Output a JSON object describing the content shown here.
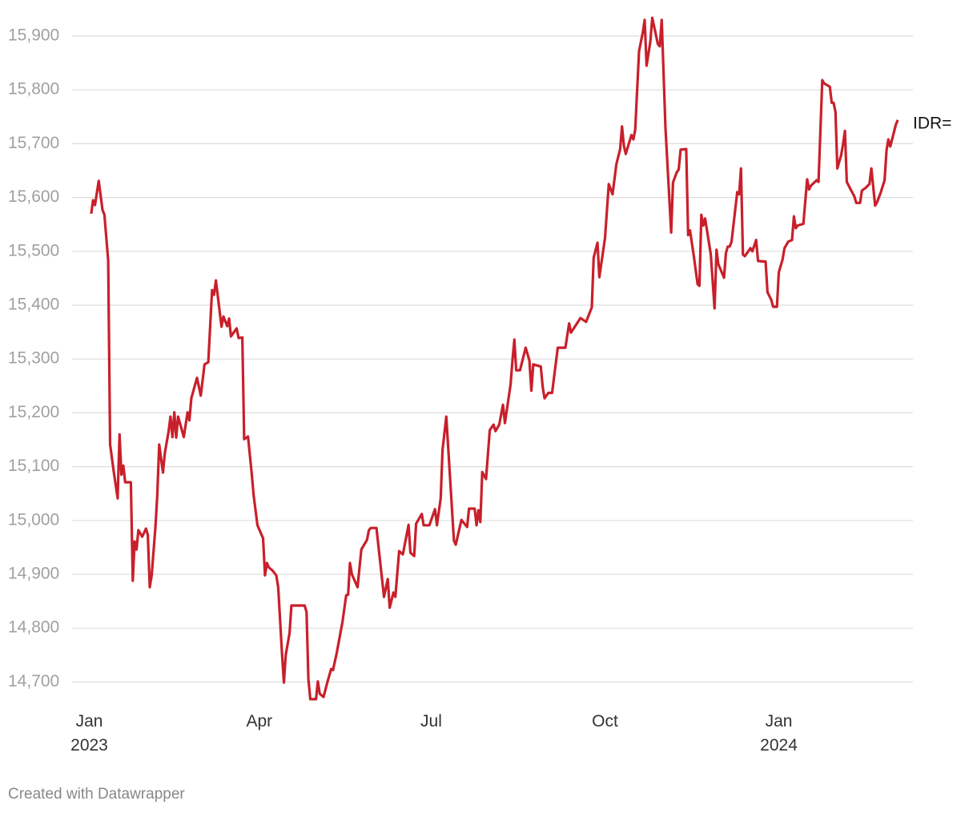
{
  "chart_data": {
    "type": "line",
    "credit": "Created with Datawrapper",
    "grid": true,
    "xlim": [
      "2022-12-25",
      "2024-03-12"
    ],
    "ylim": [
      14650,
      15950
    ],
    "yticks": [
      {
        "value": 14700,
        "label": "14,700"
      },
      {
        "value": 14800,
        "label": "14,800"
      },
      {
        "value": 14900,
        "label": "14,900"
      },
      {
        "value": 15000,
        "label": "15,000"
      },
      {
        "value": 15100,
        "label": "15,100"
      },
      {
        "value": 15200,
        "label": "15,200"
      },
      {
        "value": 15300,
        "label": "15,300"
      },
      {
        "value": 15400,
        "label": "15,400"
      },
      {
        "value": 15500,
        "label": "15,500"
      },
      {
        "value": 15600,
        "label": "15,600"
      },
      {
        "value": 15700,
        "label": "15,700"
      },
      {
        "value": 15800,
        "label": "15,800"
      },
      {
        "value": 15900,
        "label": "15,900"
      }
    ],
    "xticks": [
      {
        "value": "2023-01-01",
        "label": "Jan\n2023"
      },
      {
        "value": "2023-04-01",
        "label": "Apr"
      },
      {
        "value": "2023-07-01",
        "label": "Jul"
      },
      {
        "value": "2023-10-01",
        "label": "Oct"
      },
      {
        "value": "2024-01-01",
        "label": "Jan\n2024"
      }
    ],
    "x": [
      "2023-01-02",
      "2023-01-03",
      "2023-01-04",
      "2023-01-06",
      "2023-01-08",
      "2023-01-09",
      "2023-01-11",
      "2023-01-12",
      "2023-01-14",
      "2023-01-16",
      "2023-01-17",
      "2023-01-18",
      "2023-01-19",
      "2023-01-20",
      "2023-01-23",
      "2023-01-24",
      "2023-01-25",
      "2023-01-26",
      "2023-01-27",
      "2023-01-29",
      "2023-01-31",
      "2023-02-01",
      "2023-02-02",
      "2023-02-03",
      "2023-02-05",
      "2023-02-06",
      "2023-02-07",
      "2023-02-09",
      "2023-02-10",
      "2023-02-12",
      "2023-02-13",
      "2023-02-14",
      "2023-02-15",
      "2023-02-16",
      "2023-02-17",
      "2023-02-20",
      "2023-02-22",
      "2023-02-23",
      "2023-02-24",
      "2023-02-27",
      "2023-03-01",
      "2023-03-03",
      "2023-03-05",
      "2023-03-07",
      "2023-03-08",
      "2023-03-09",
      "2023-03-12",
      "2023-03-13",
      "2023-03-15",
      "2023-03-16",
      "2023-03-17",
      "2023-03-20",
      "2023-03-21",
      "2023-03-23",
      "2023-03-24",
      "2023-03-26",
      "2023-03-28",
      "2023-03-29",
      "2023-03-31",
      "2023-04-03",
      "2023-04-04",
      "2023-04-05",
      "2023-04-06",
      "2023-04-08",
      "2023-04-10",
      "2023-04-11",
      "2023-04-13",
      "2023-04-14",
      "2023-04-15",
      "2023-04-17",
      "2023-04-18",
      "2023-04-21",
      "2023-04-25",
      "2023-04-26",
      "2023-04-27",
      "2023-04-28",
      "2023-05-01",
      "2023-05-02",
      "2023-05-03",
      "2023-05-05",
      "2023-05-07",
      "2023-05-09",
      "2023-05-10",
      "2023-05-12",
      "2023-05-15",
      "2023-05-17",
      "2023-05-18",
      "2023-05-19",
      "2023-05-20",
      "2023-05-23",
      "2023-05-25",
      "2023-05-28",
      "2023-05-29",
      "2023-05-30",
      "2023-06-02",
      "2023-06-06",
      "2023-06-08",
      "2023-06-09",
      "2023-06-11",
      "2023-06-12",
      "2023-06-14",
      "2023-06-16",
      "2023-06-19",
      "2023-06-20",
      "2023-06-22",
      "2023-06-23",
      "2023-06-26",
      "2023-06-27",
      "2023-06-30",
      "2023-07-03",
      "2023-07-04",
      "2023-07-06",
      "2023-07-07",
      "2023-07-09",
      "2023-07-11",
      "2023-07-13",
      "2023-07-14",
      "2023-07-17",
      "2023-07-20",
      "2023-07-21",
      "2023-07-24",
      "2023-07-25",
      "2023-07-26",
      "2023-07-27",
      "2023-07-28",
      "2023-07-30",
      "2023-08-01",
      "2023-08-03",
      "2023-08-04",
      "2023-08-06",
      "2023-08-08",
      "2023-08-09",
      "2023-08-12",
      "2023-08-13",
      "2023-08-14",
      "2023-08-15",
      "2023-08-17",
      "2023-08-20",
      "2023-08-22",
      "2023-08-23",
      "2023-08-24",
      "2023-08-28",
      "2023-08-29",
      "2023-08-30",
      "2023-09-01",
      "2023-09-03",
      "2023-09-06",
      "2023-09-10",
      "2023-09-12",
      "2023-09-13",
      "2023-09-15",
      "2023-09-18",
      "2023-09-21",
      "2023-09-24",
      "2023-09-25",
      "2023-09-27",
      "2023-09-28",
      "2023-10-01",
      "2023-10-03",
      "2023-10-05",
      "2023-10-07",
      "2023-10-09",
      "2023-10-10",
      "2023-10-11",
      "2023-10-12",
      "2023-10-15",
      "2023-10-16",
      "2023-10-17",
      "2023-10-19",
      "2023-10-21",
      "2023-10-22",
      "2023-10-23",
      "2023-10-25",
      "2023-10-26",
      "2023-10-29",
      "2023-10-30",
      "2023-10-31",
      "2023-11-02",
      "2023-11-05",
      "2023-11-06",
      "2023-11-08",
      "2023-11-09",
      "2023-11-10",
      "2023-11-13",
      "2023-11-14",
      "2023-11-15",
      "2023-11-17",
      "2023-11-19",
      "2023-11-20",
      "2023-11-21",
      "2023-11-22",
      "2023-11-23",
      "2023-11-26",
      "2023-11-28",
      "2023-11-29",
      "2023-11-30",
      "2023-12-03",
      "2023-12-04",
      "2023-12-05",
      "2023-12-06",
      "2023-12-07",
      "2023-12-10",
      "2023-12-11",
      "2023-12-12",
      "2023-12-13",
      "2023-12-14",
      "2023-12-17",
      "2023-12-18",
      "2023-12-20",
      "2023-12-21",
      "2023-12-25",
      "2023-12-26",
      "2023-12-28",
      "2023-12-29",
      "2023-12-31",
      "2024-01-01",
      "2024-01-03",
      "2024-01-04",
      "2024-01-06",
      "2024-01-08",
      "2024-01-09",
      "2024-01-10",
      "2024-01-11",
      "2024-01-14",
      "2024-01-16",
      "2024-01-17",
      "2024-01-18",
      "2024-01-21",
      "2024-01-22",
      "2024-01-24",
      "2024-01-25",
      "2024-01-28",
      "2024-01-29",
      "2024-01-30",
      "2024-01-31",
      "2024-02-01",
      "2024-02-03",
      "2024-02-04",
      "2024-02-05",
      "2024-02-06",
      "2024-02-08",
      "2024-02-10",
      "2024-02-11",
      "2024-02-13",
      "2024-02-14",
      "2024-02-16",
      "2024-02-18",
      "2024-02-19",
      "2024-02-21",
      "2024-02-22",
      "2024-02-24",
      "2024-02-26",
      "2024-02-27",
      "2024-02-28",
      "2024-02-29",
      "2024-03-03",
      "2024-03-04"
    ],
    "series": [
      {
        "name": "IDR=",
        "color": "#c8202b",
        "values": [
          15570,
          15595,
          15586,
          15631,
          15577,
          15568,
          15483,
          15141,
          15089,
          15041,
          15160,
          15085,
          15102,
          15071,
          15071,
          14888,
          14961,
          14946,
          14982,
          14970,
          14985,
          14973,
          14876,
          14898,
          14988,
          15047,
          15141,
          15089,
          15126,
          15166,
          15193,
          15155,
          15201,
          15154,
          15193,
          15155,
          15201,
          15186,
          15227,
          15265,
          15232,
          15290,
          15294,
          15428,
          15419,
          15446,
          15360,
          15379,
          15361,
          15375,
          15342,
          15357,
          15339,
          15340,
          15151,
          15156,
          15086,
          15047,
          14991,
          14967,
          14898,
          14921,
          14913,
          14907,
          14898,
          14876,
          14754,
          14699,
          14750,
          14791,
          14842,
          14842,
          14842,
          14830,
          14705,
          14668,
          14668,
          14701,
          14678,
          14672,
          14699,
          14724,
          14722,
          14754,
          14811,
          14861,
          14862,
          14921,
          14900,
          14876,
          14946,
          14964,
          14982,
          14986,
          14986,
          14858,
          14891,
          14838,
          14866,
          14858,
          14943,
          14937,
          14992,
          14940,
          14934,
          14994,
          15012,
          14991,
          14991,
          15021,
          14991,
          15041,
          15131,
          15193,
          15077,
          14963,
          14955,
          15001,
          14988,
          15022,
          15022,
          14991,
          15019,
          14997,
          15090,
          15077,
          15168,
          15178,
          15166,
          15178,
          15215,
          15181,
          15253,
          15297,
          15336,
          15279,
          15279,
          15321,
          15297,
          15241,
          15290,
          15286,
          15248,
          15227,
          15237,
          15237,
          15321,
          15321,
          15366,
          15349,
          15360,
          15376,
          15369,
          15396,
          15488,
          15516,
          15452,
          15525,
          15625,
          15606,
          15662,
          15690,
          15732,
          15696,
          15681,
          15716,
          15708,
          15726,
          15872,
          15907,
          15930,
          15845,
          15890,
          15934,
          15885,
          15881,
          15930,
          15729,
          15535,
          15628,
          15647,
          15652,
          15689,
          15690,
          15530,
          15539,
          15491,
          15439,
          15436,
          15568,
          15548,
          15561,
          15494,
          15394,
          15503,
          15476,
          15451,
          15497,
          15509,
          15509,
          15518,
          15610,
          15606,
          15654,
          15494,
          15491,
          15506,
          15500,
          15521,
          15482,
          15481,
          15424,
          15410,
          15397,
          15397,
          15461,
          15485,
          15506,
          15518,
          15521,
          15565,
          15543,
          15548,
          15551,
          15634,
          15615,
          15622,
          15632,
          15629,
          15818,
          15812,
          15806,
          15776,
          15776,
          15759,
          15654,
          15679,
          15699,
          15724,
          15629,
          15615,
          15602,
          15590,
          15590,
          15613,
          15618,
          15625,
          15654,
          15585,
          15591,
          15610,
          15632,
          15687,
          15708,
          15695,
          15736,
          15744
        ]
      }
    ]
  }
}
